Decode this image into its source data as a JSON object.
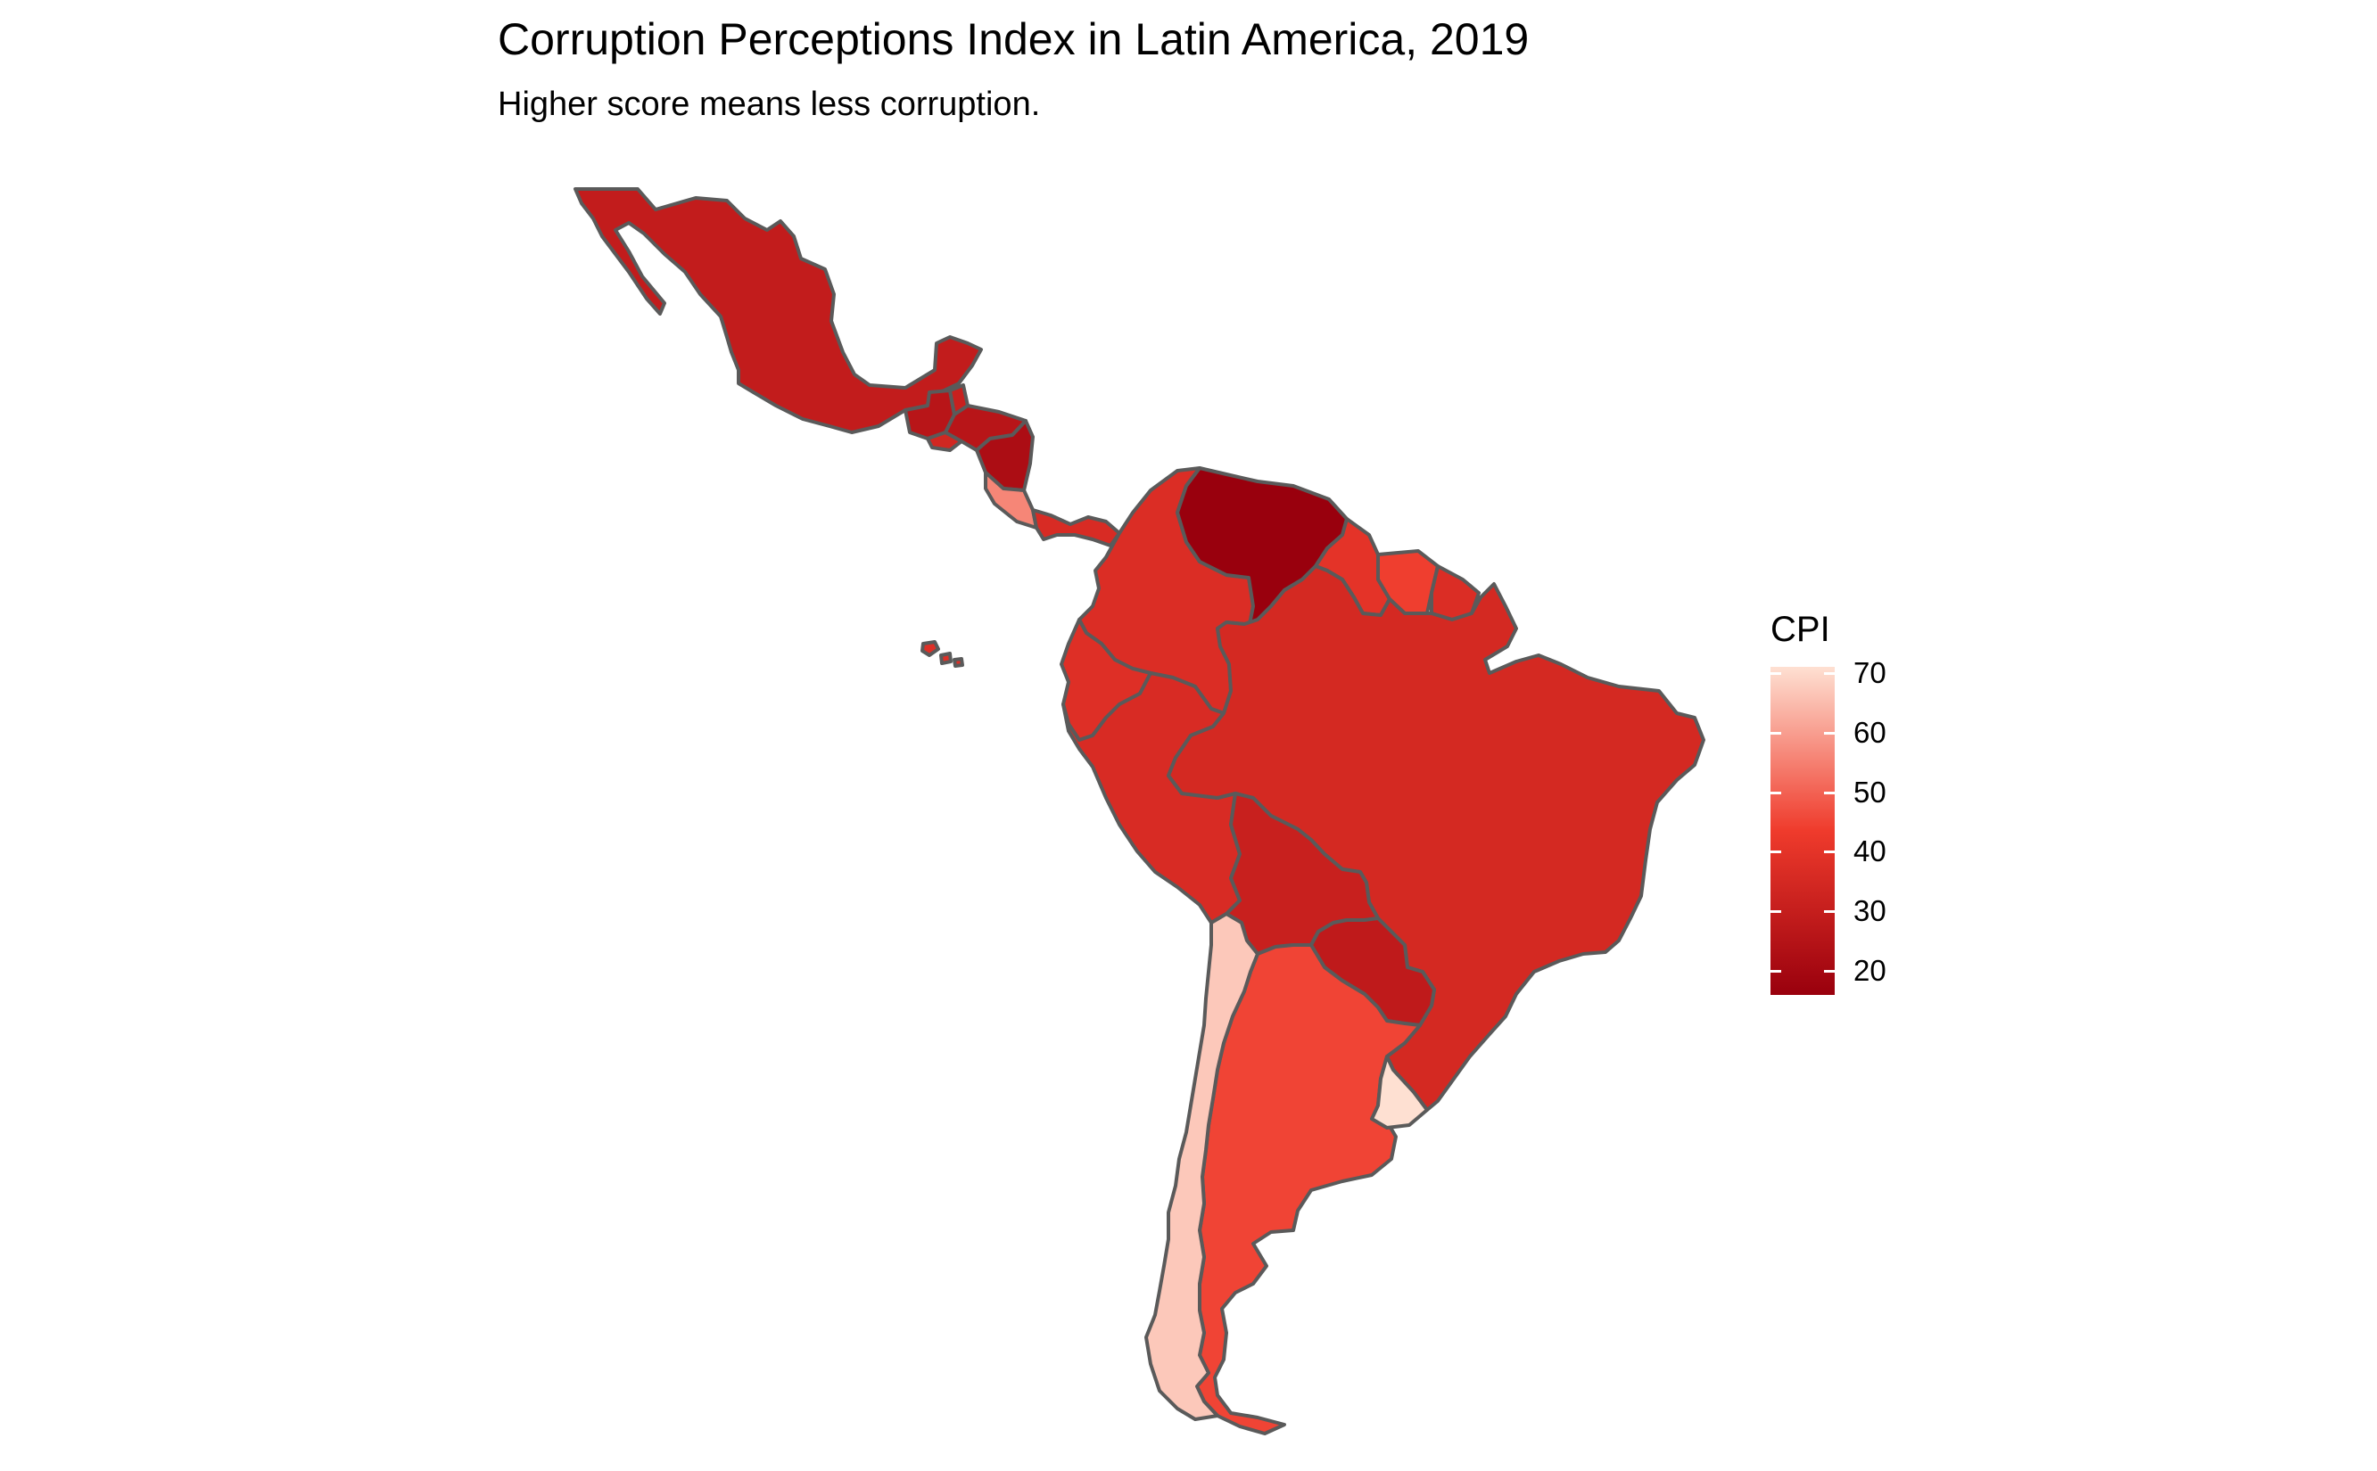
{
  "title": "Corruption Perceptions Index in Latin America, 2019",
  "subtitle": "Higher score means less corruption.",
  "legend": {
    "title": "CPI",
    "min": 16,
    "max": 71,
    "ticks": [
      "70",
      "60",
      "50",
      "40",
      "30",
      "20"
    ],
    "tick_values": [
      70,
      60,
      50,
      40,
      30,
      20
    ],
    "colors": {
      "low": "#99000d",
      "mid": "#ef3b2c",
      "high": "#fee0d2"
    }
  },
  "countries": [
    {
      "name": "Mexico",
      "cpi": 29
    },
    {
      "name": "Guatemala",
      "cpi": 26
    },
    {
      "name": "Belize",
      "cpi": 31
    },
    {
      "name": "Honduras",
      "cpi": 26
    },
    {
      "name": "El Salvador",
      "cpi": 34
    },
    {
      "name": "Nicaragua",
      "cpi": 22
    },
    {
      "name": "Costa Rica",
      "cpi": 56
    },
    {
      "name": "Panama",
      "cpi": 36
    },
    {
      "name": "Colombia",
      "cpi": 37
    },
    {
      "name": "Venezuela",
      "cpi": 16
    },
    {
      "name": "Guyana",
      "cpi": 40
    },
    {
      "name": "Suriname",
      "cpi": 44
    },
    {
      "name": "French Guiana",
      "cpi": 37
    },
    {
      "name": "Ecuador",
      "cpi": 38
    },
    {
      "name": "Peru",
      "cpi": 36
    },
    {
      "name": "Brazil",
      "cpi": 35
    },
    {
      "name": "Bolivia",
      "cpi": 31
    },
    {
      "name": "Paraguay",
      "cpi": 28
    },
    {
      "name": "Chile",
      "cpi": 67
    },
    {
      "name": "Argentina",
      "cpi": 45
    },
    {
      "name": "Uruguay",
      "cpi": 71
    }
  ]
}
